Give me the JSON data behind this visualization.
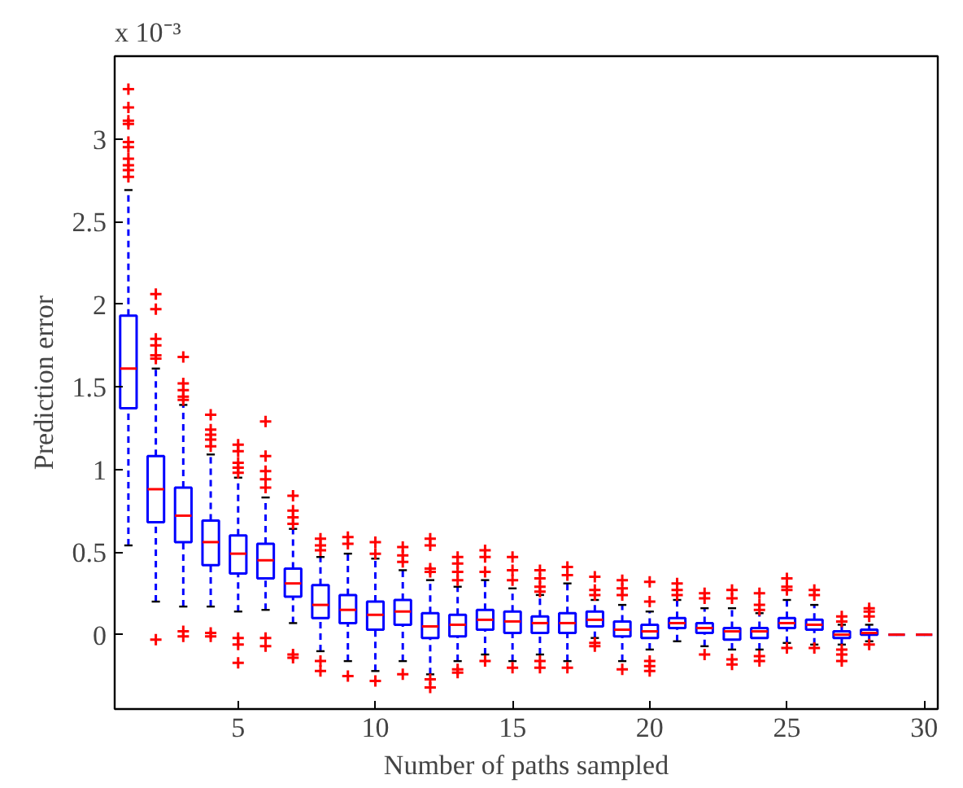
{
  "chart_data": {
    "type": "box",
    "xlabel": "Number of paths sampled",
    "ylabel": "Prediction error",
    "annotations": [
      "x 10⁻³"
    ],
    "categories": [
      null,
      null,
      null,
      null,
      "5",
      null,
      null,
      null,
      null,
      "10",
      null,
      null,
      null,
      null,
      "15",
      null,
      null,
      null,
      null,
      "20",
      null,
      null,
      null,
      null,
      "25",
      null,
      null,
      null,
      null,
      "30"
    ],
    "ylim": [
      -0.45,
      3.5
    ],
    "yticks": [
      0,
      0.5,
      1,
      1.5,
      2,
      2.5,
      3
    ],
    "grid": false,
    "line_style": "dashed",
    "series": [
      {
        "color": "#0000ff",
        "boxes": [
          {
            "low": 0.54,
            "q1": 1.37,
            "median": 1.61,
            "q3": 1.93,
            "high": 2.69,
            "outliers": [
              3.3,
              3.19,
              3.11,
              3.09,
              2.98,
              2.95,
              2.88,
              2.84,
              2.81,
              2.77
            ]
          },
          {
            "low": 0.2,
            "q1": 0.68,
            "median": 0.88,
            "q3": 1.08,
            "high": 1.61,
            "outliers": [
              2.06,
              1.97,
              1.79,
              1.75,
              1.69,
              1.67,
              -0.03
            ]
          },
          {
            "low": 0.17,
            "q1": 0.56,
            "median": 0.72,
            "q3": 0.89,
            "high": 1.39,
            "outliers": [
              1.68,
              1.52,
              1.48,
              1.44,
              1.42,
              0.02,
              -0.01
            ]
          },
          {
            "low": 0.17,
            "q1": 0.42,
            "median": 0.56,
            "q3": 0.69,
            "high": 1.09,
            "outliers": [
              1.33,
              1.24,
              1.21,
              1.18,
              1.14,
              0.01,
              -0.01
            ]
          },
          {
            "low": 0.14,
            "q1": 0.37,
            "median": 0.49,
            "q3": 0.6,
            "high": 0.95,
            "outliers": [
              1.15,
              1.11,
              1.04,
              1.01,
              0.98,
              -0.02,
              -0.06,
              -0.17
            ]
          },
          {
            "low": 0.15,
            "q1": 0.34,
            "median": 0.45,
            "q3": 0.55,
            "high": 0.83,
            "outliers": [
              1.29,
              1.08,
              0.99,
              0.94,
              0.89,
              -0.02,
              -0.07
            ]
          },
          {
            "low": 0.07,
            "q1": 0.23,
            "median": 0.31,
            "q3": 0.4,
            "high": 0.64,
            "outliers": [
              0.84,
              0.75,
              0.71,
              0.67,
              -0.12,
              -0.14
            ]
          },
          {
            "low": -0.1,
            "q1": 0.1,
            "median": 0.18,
            "q3": 0.3,
            "high": 0.47,
            "outliers": [
              0.58,
              0.54,
              0.51,
              -0.16,
              -0.22
            ]
          },
          {
            "low": -0.16,
            "q1": 0.07,
            "median": 0.15,
            "q3": 0.24,
            "high": 0.49,
            "outliers": [
              0.59,
              0.55,
              -0.25
            ]
          },
          {
            "low": -0.22,
            "q1": 0.03,
            "median": 0.12,
            "q3": 0.2,
            "high": 0.46,
            "outliers": [
              0.56,
              0.49,
              -0.28
            ]
          },
          {
            "low": -0.16,
            "q1": 0.06,
            "median": 0.14,
            "q3": 0.21,
            "high": 0.39,
            "outliers": [
              0.53,
              0.48,
              0.44,
              -0.24
            ]
          },
          {
            "low": -0.24,
            "q1": -0.02,
            "median": 0.05,
            "q3": 0.13,
            "high": 0.33,
            "outliers": [
              0.58,
              0.54,
              0.4,
              0.38,
              -0.27,
              -0.32
            ]
          },
          {
            "low": -0.16,
            "q1": -0.01,
            "median": 0.06,
            "q3": 0.12,
            "high": 0.29,
            "outliers": [
              0.47,
              0.43,
              0.38,
              0.33,
              -0.21,
              -0.23
            ]
          },
          {
            "low": -0.12,
            "q1": 0.03,
            "median": 0.09,
            "q3": 0.15,
            "high": 0.33,
            "outliers": [
              0.51,
              0.47,
              0.38,
              -0.16
            ]
          },
          {
            "low": -0.16,
            "q1": 0.01,
            "median": 0.08,
            "q3": 0.14,
            "high": 0.28,
            "outliers": [
              0.47,
              0.39,
              0.33,
              -0.2
            ]
          },
          {
            "low": -0.12,
            "q1": 0.01,
            "median": 0.07,
            "q3": 0.11,
            "high": 0.24,
            "outliers": [
              0.39,
              0.34,
              0.29,
              0.26,
              -0.16,
              -0.2
            ]
          },
          {
            "low": -0.16,
            "q1": 0.01,
            "median": 0.07,
            "q3": 0.13,
            "high": 0.31,
            "outliers": [
              0.41,
              0.36,
              -0.2
            ]
          },
          {
            "low": -0.02,
            "q1": 0.05,
            "median": 0.09,
            "q3": 0.14,
            "high": 0.21,
            "outliers": [
              0.35,
              0.27,
              0.24,
              -0.05,
              -0.07
            ]
          },
          {
            "low": -0.16,
            "q1": -0.01,
            "median": 0.03,
            "q3": 0.08,
            "high": 0.18,
            "outliers": [
              0.33,
              0.28,
              0.24,
              -0.21
            ]
          },
          {
            "low": -0.09,
            "q1": -0.02,
            "median": 0.02,
            "q3": 0.06,
            "high": 0.14,
            "outliers": [
              0.32,
              0.2,
              -0.16,
              -0.19,
              -0.22
            ]
          },
          {
            "low": -0.04,
            "q1": 0.04,
            "median": 0.07,
            "q3": 0.1,
            "high": 0.21,
            "outliers": [
              0.31,
              0.27,
              0.24
            ]
          },
          {
            "low": -0.07,
            "q1": 0.01,
            "median": 0.04,
            "q3": 0.07,
            "high": 0.16,
            "outliers": [
              0.25,
              0.22,
              -0.12
            ]
          },
          {
            "low": -0.09,
            "q1": -0.03,
            "median": 0.02,
            "q3": 0.04,
            "high": 0.16,
            "outliers": [
              0.27,
              0.22,
              -0.15,
              -0.18
            ]
          },
          {
            "low": -0.09,
            "q1": -0.02,
            "median": 0.02,
            "q3": 0.04,
            "high": 0.13,
            "outliers": [
              0.25,
              0.18,
              0.15,
              -0.13,
              -0.16
            ]
          },
          {
            "low": -0.05,
            "q1": 0.04,
            "median": 0.07,
            "q3": 0.1,
            "high": 0.21,
            "outliers": [
              0.34,
              0.29,
              0.27,
              -0.08
            ]
          },
          {
            "low": -0.06,
            "q1": 0.03,
            "median": 0.06,
            "q3": 0.09,
            "high": 0.18,
            "outliers": [
              0.27,
              0.24,
              -0.08
            ]
          },
          {
            "low": -0.06,
            "q1": -0.02,
            "median": 0.0,
            "q3": 0.02,
            "high": 0.06,
            "outliers": [
              0.11,
              0.08,
              -0.09,
              -0.12,
              -0.16
            ]
          },
          {
            "low": -0.04,
            "q1": 0.0,
            "median": 0.01,
            "q3": 0.03,
            "high": 0.06,
            "outliers": [
              0.16,
              0.14,
              0.11,
              -0.06
            ]
          },
          {
            "low": 0.0,
            "q1": 0.0,
            "median": 0.0,
            "q3": 0.0,
            "high": 0.0
          },
          {
            "low": 0.0,
            "q1": 0.0,
            "median": 0.0,
            "q3": 0.0,
            "high": 0.0
          }
        ]
      }
    ]
  }
}
